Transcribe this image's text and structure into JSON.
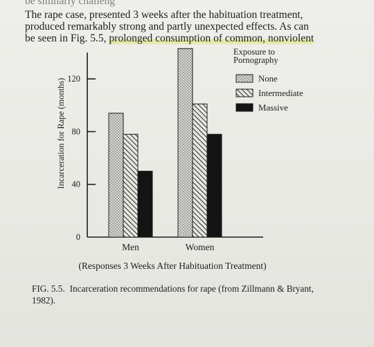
{
  "intro_text": {
    "line1": "be similarly challeng",
    "line1b": "3 weeks after the habituation treatment,",
    "line1a": "The rape case, presented",
    "line2": "produced remarkably strong and partly unexpected effects. As can",
    "line3a": "be seen in Fig. 5.5,",
    "line3b": "prolonged consumption of common, nonviolent"
  },
  "figure_caption": {
    "label": "FIG. 5.5.",
    "text": "Incarceration recommendations for rape (from Zillmann & Bryant, 1982)."
  },
  "chart_data": {
    "type": "bar",
    "title": "",
    "xlabel": "(Responses 3 Weeks After Habituation Treatment)",
    "ylabel": "Incarceration for Rape (months)",
    "ylim": [
      0,
      140
    ],
    "yticks": [
      0,
      40,
      80,
      120
    ],
    "grid": false,
    "categories": [
      "Men",
      "Women"
    ],
    "legend": {
      "title_line1": "Exposure to",
      "title_line2": "Pornography",
      "placement": "top-right"
    },
    "series": [
      {
        "name": "None",
        "pattern": "dotted",
        "values": [
          94,
          143
        ]
      },
      {
        "name": "Intermediate",
        "pattern": "hatched",
        "values": [
          78,
          101
        ]
      },
      {
        "name": "Massive",
        "pattern": "solid",
        "color": "#141414",
        "values": [
          50,
          78
        ]
      }
    ]
  }
}
